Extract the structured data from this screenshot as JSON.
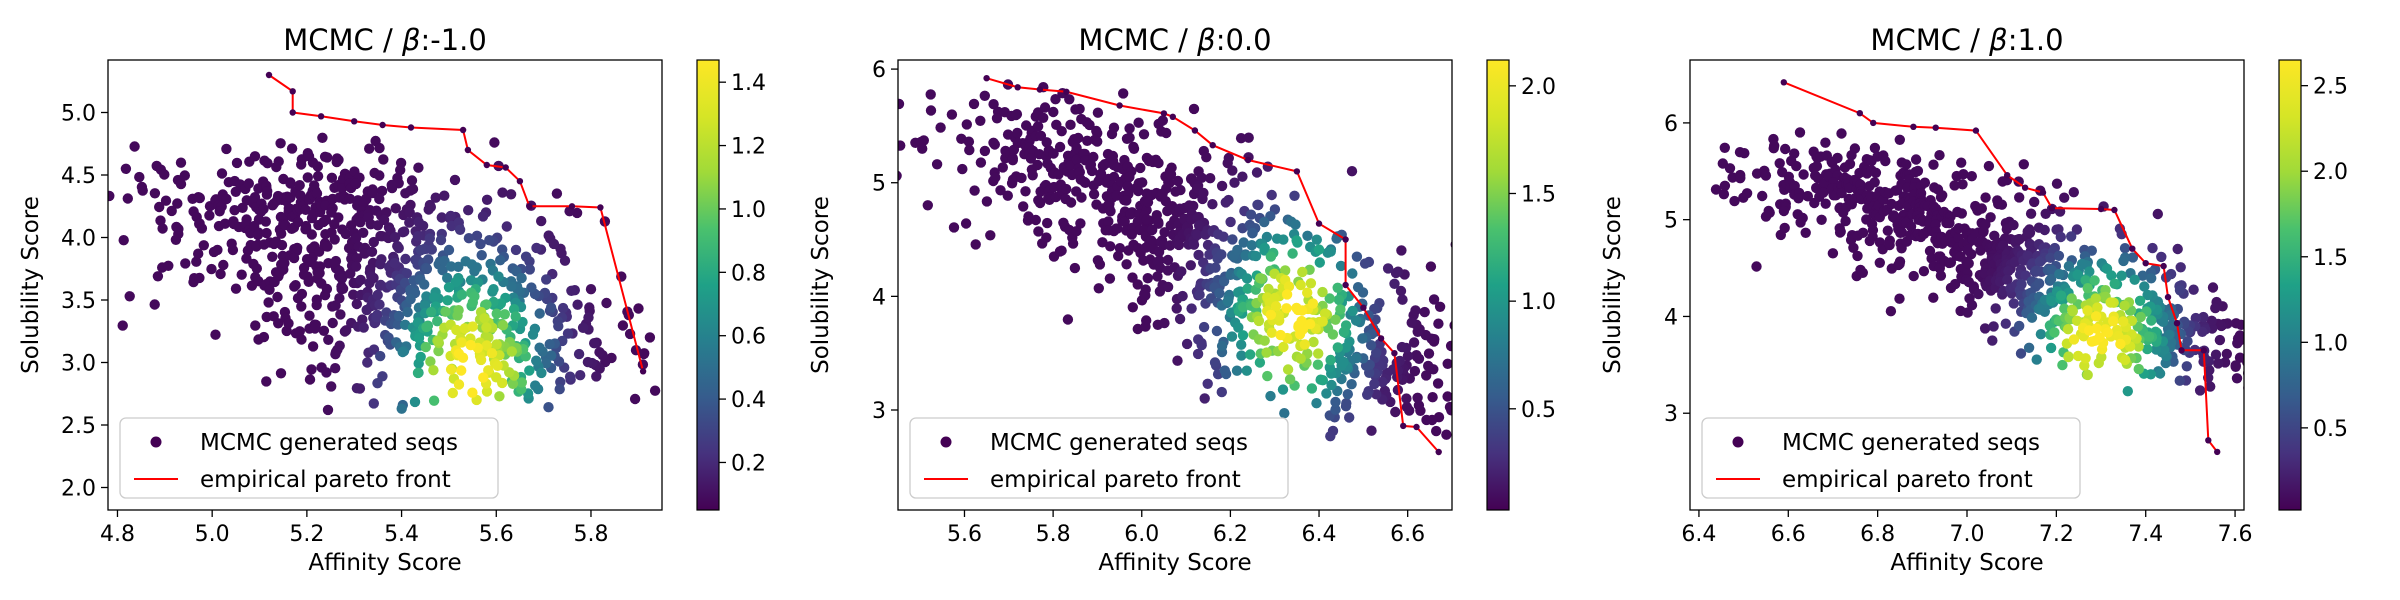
{
  "chart_data": [
    {
      "type": "scatter",
      "title": "MCMC / β:-1.0",
      "title_prefix": "MCMC / ",
      "title_symbol": "β",
      "title_suffix": ":-1.0",
      "xlabel": "Affinity Score",
      "ylabel": "Solubility Score",
      "xlim": [
        4.78,
        5.95
      ],
      "ylim": [
        1.82,
        5.42
      ],
      "xticks": [
        "4.8",
        "5.0",
        "5.2",
        "5.4",
        "5.6",
        "5.8"
      ],
      "xtick_values": [
        4.8,
        5.0,
        5.2,
        5.4,
        5.6,
        5.8
      ],
      "yticks": [
        "2.0",
        "2.5",
        "3.0",
        "3.5",
        "4.0",
        "4.5",
        "5.0"
      ],
      "ytick_values": [
        2.0,
        2.5,
        3.0,
        3.5,
        4.0,
        4.5,
        5.0
      ],
      "colorbar": {
        "min": 0.05,
        "max": 1.47,
        "ticks": [
          "0.2",
          "0.4",
          "0.6",
          "0.8",
          "1.0",
          "1.2",
          "1.4"
        ],
        "tick_values": [
          0.2,
          0.4,
          0.6,
          0.8,
          1.0,
          1.2,
          1.4
        ],
        "colormap": "viridis"
      },
      "cloud": {
        "center": [
          5.38,
          3.7
        ],
        "direction": [
          0.32,
          -1.0
        ],
        "half_length": 1.15,
        "spread": 0.2,
        "density_peak": [
          5.55,
          2.95
        ],
        "count": 900
      },
      "pareto_front": [
        [
          5.12,
          5.3
        ],
        [
          5.17,
          5.17
        ],
        [
          5.17,
          5.0
        ],
        [
          5.23,
          4.97
        ],
        [
          5.3,
          4.93
        ],
        [
          5.36,
          4.9
        ],
        [
          5.42,
          4.88
        ],
        [
          5.53,
          4.86
        ],
        [
          5.54,
          4.7
        ],
        [
          5.58,
          4.58
        ],
        [
          5.62,
          4.56
        ],
        [
          5.65,
          4.45
        ],
        [
          5.67,
          4.25
        ],
        [
          5.76,
          4.25
        ],
        [
          5.82,
          4.24
        ],
        [
          5.91,
          2.93
        ]
      ],
      "legend": {
        "position": "lower-left",
        "items": [
          {
            "label": "MCMC generated seqs",
            "marker": "dot",
            "color": "#440154"
          },
          {
            "label": "empirical pareto front",
            "marker": "line",
            "color": "#ff0000"
          }
        ]
      }
    },
    {
      "type": "scatter",
      "title": "MCMC / β:0.0",
      "title_prefix": "MCMC / ",
      "title_symbol": "β",
      "title_suffix": ":0.0",
      "xlabel": "Affinity Score",
      "ylabel": "Solubility Score",
      "xlim": [
        5.45,
        6.7
      ],
      "ylim": [
        2.12,
        6.08
      ],
      "xticks": [
        "5.6",
        "5.8",
        "6.0",
        "6.2",
        "6.4",
        "6.6"
      ],
      "xtick_values": [
        5.6,
        5.8,
        6.0,
        6.2,
        6.4,
        6.6
      ],
      "yticks": [
        "3",
        "4",
        "5",
        "6"
      ],
      "ytick_values": [
        3,
        4,
        5,
        6
      ],
      "colorbar": {
        "min": 0.03,
        "max": 2.12,
        "ticks": [
          "0.5",
          "1.0",
          "1.5",
          "2.0"
        ],
        "tick_values": [
          0.5,
          1.0,
          1.5,
          2.0
        ],
        "colormap": "viridis"
      },
      "cloud": {
        "center": [
          6.17,
          4.3
        ],
        "direction": [
          0.36,
          -1.0
        ],
        "half_length": 1.7,
        "spread": 0.17,
        "density_peak": [
          6.34,
          3.8
        ],
        "count": 900
      },
      "pareto_front": [
        [
          5.65,
          5.92
        ],
        [
          5.72,
          5.84
        ],
        [
          5.77,
          5.82
        ],
        [
          5.83,
          5.8
        ],
        [
          5.95,
          5.68
        ],
        [
          6.05,
          5.61
        ],
        [
          6.07,
          5.58
        ],
        [
          6.12,
          5.46
        ],
        [
          6.16,
          5.33
        ],
        [
          6.24,
          5.2
        ],
        [
          6.35,
          5.1
        ],
        [
          6.4,
          4.64
        ],
        [
          6.46,
          4.5
        ],
        [
          6.46,
          4.1
        ],
        [
          6.5,
          3.9
        ],
        [
          6.54,
          3.63
        ],
        [
          6.57,
          3.5
        ],
        [
          6.59,
          2.86
        ],
        [
          6.62,
          2.85
        ],
        [
          6.67,
          2.63
        ]
      ],
      "legend": {
        "position": "lower-left",
        "items": [
          {
            "label": "MCMC generated seqs",
            "marker": "dot",
            "color": "#440154"
          },
          {
            "label": "empirical pareto front",
            "marker": "line",
            "color": "#ff0000"
          }
        ]
      }
    },
    {
      "type": "scatter",
      "title": "MCMC / β:1.0",
      "title_prefix": "MCMC / ",
      "title_symbol": "β",
      "title_suffix": ":1.0",
      "xlabel": "Affinity Score",
      "ylabel": "Solubility Score",
      "xlim": [
        6.38,
        7.62
      ],
      "ylim": [
        2.0,
        6.65
      ],
      "xticks": [
        "6.4",
        "6.6",
        "6.8",
        "7.0",
        "7.2",
        "7.4",
        "7.6"
      ],
      "xtick_values": [
        6.4,
        6.6,
        6.8,
        7.0,
        7.2,
        7.4,
        7.6
      ],
      "yticks": [
        "3",
        "4",
        "5",
        "6"
      ],
      "ytick_values": [
        3,
        4,
        5,
        6
      ],
      "colorbar": {
        "min": 0.02,
        "max": 2.65,
        "ticks": [
          "0.5",
          "1.0",
          "1.5",
          "2.0",
          "2.5"
        ],
        "tick_values": [
          0.5,
          1.0,
          1.5,
          2.0,
          2.5
        ],
        "colormap": "viridis"
      },
      "cloud": {
        "center": [
          7.1,
          4.55
        ],
        "direction": [
          0.42,
          -1.0
        ],
        "half_length": 1.45,
        "spread": 0.15,
        "density_peak": [
          7.3,
          3.75
        ],
        "count": 900
      },
      "pareto_front": [
        [
          6.59,
          6.42
        ],
        [
          6.76,
          6.1
        ],
        [
          6.79,
          6.0
        ],
        [
          6.88,
          5.96
        ],
        [
          6.93,
          5.95
        ],
        [
          7.02,
          5.92
        ],
        [
          7.09,
          5.46
        ],
        [
          7.13,
          5.33
        ],
        [
          7.17,
          5.28
        ],
        [
          7.19,
          5.12
        ],
        [
          7.3,
          5.11
        ],
        [
          7.33,
          5.1
        ],
        [
          7.37,
          4.7
        ],
        [
          7.4,
          4.55
        ],
        [
          7.44,
          4.52
        ],
        [
          7.45,
          4.2
        ],
        [
          7.47,
          3.93
        ],
        [
          7.48,
          3.65
        ],
        [
          7.53,
          3.65
        ],
        [
          7.54,
          2.72
        ],
        [
          7.56,
          2.6
        ]
      ],
      "legend": {
        "position": "lower-left",
        "items": [
          {
            "label": "MCMC generated seqs",
            "marker": "dot",
            "color": "#440154"
          },
          {
            "label": "empirical pareto front",
            "marker": "line",
            "color": "#ff0000"
          }
        ]
      }
    }
  ]
}
